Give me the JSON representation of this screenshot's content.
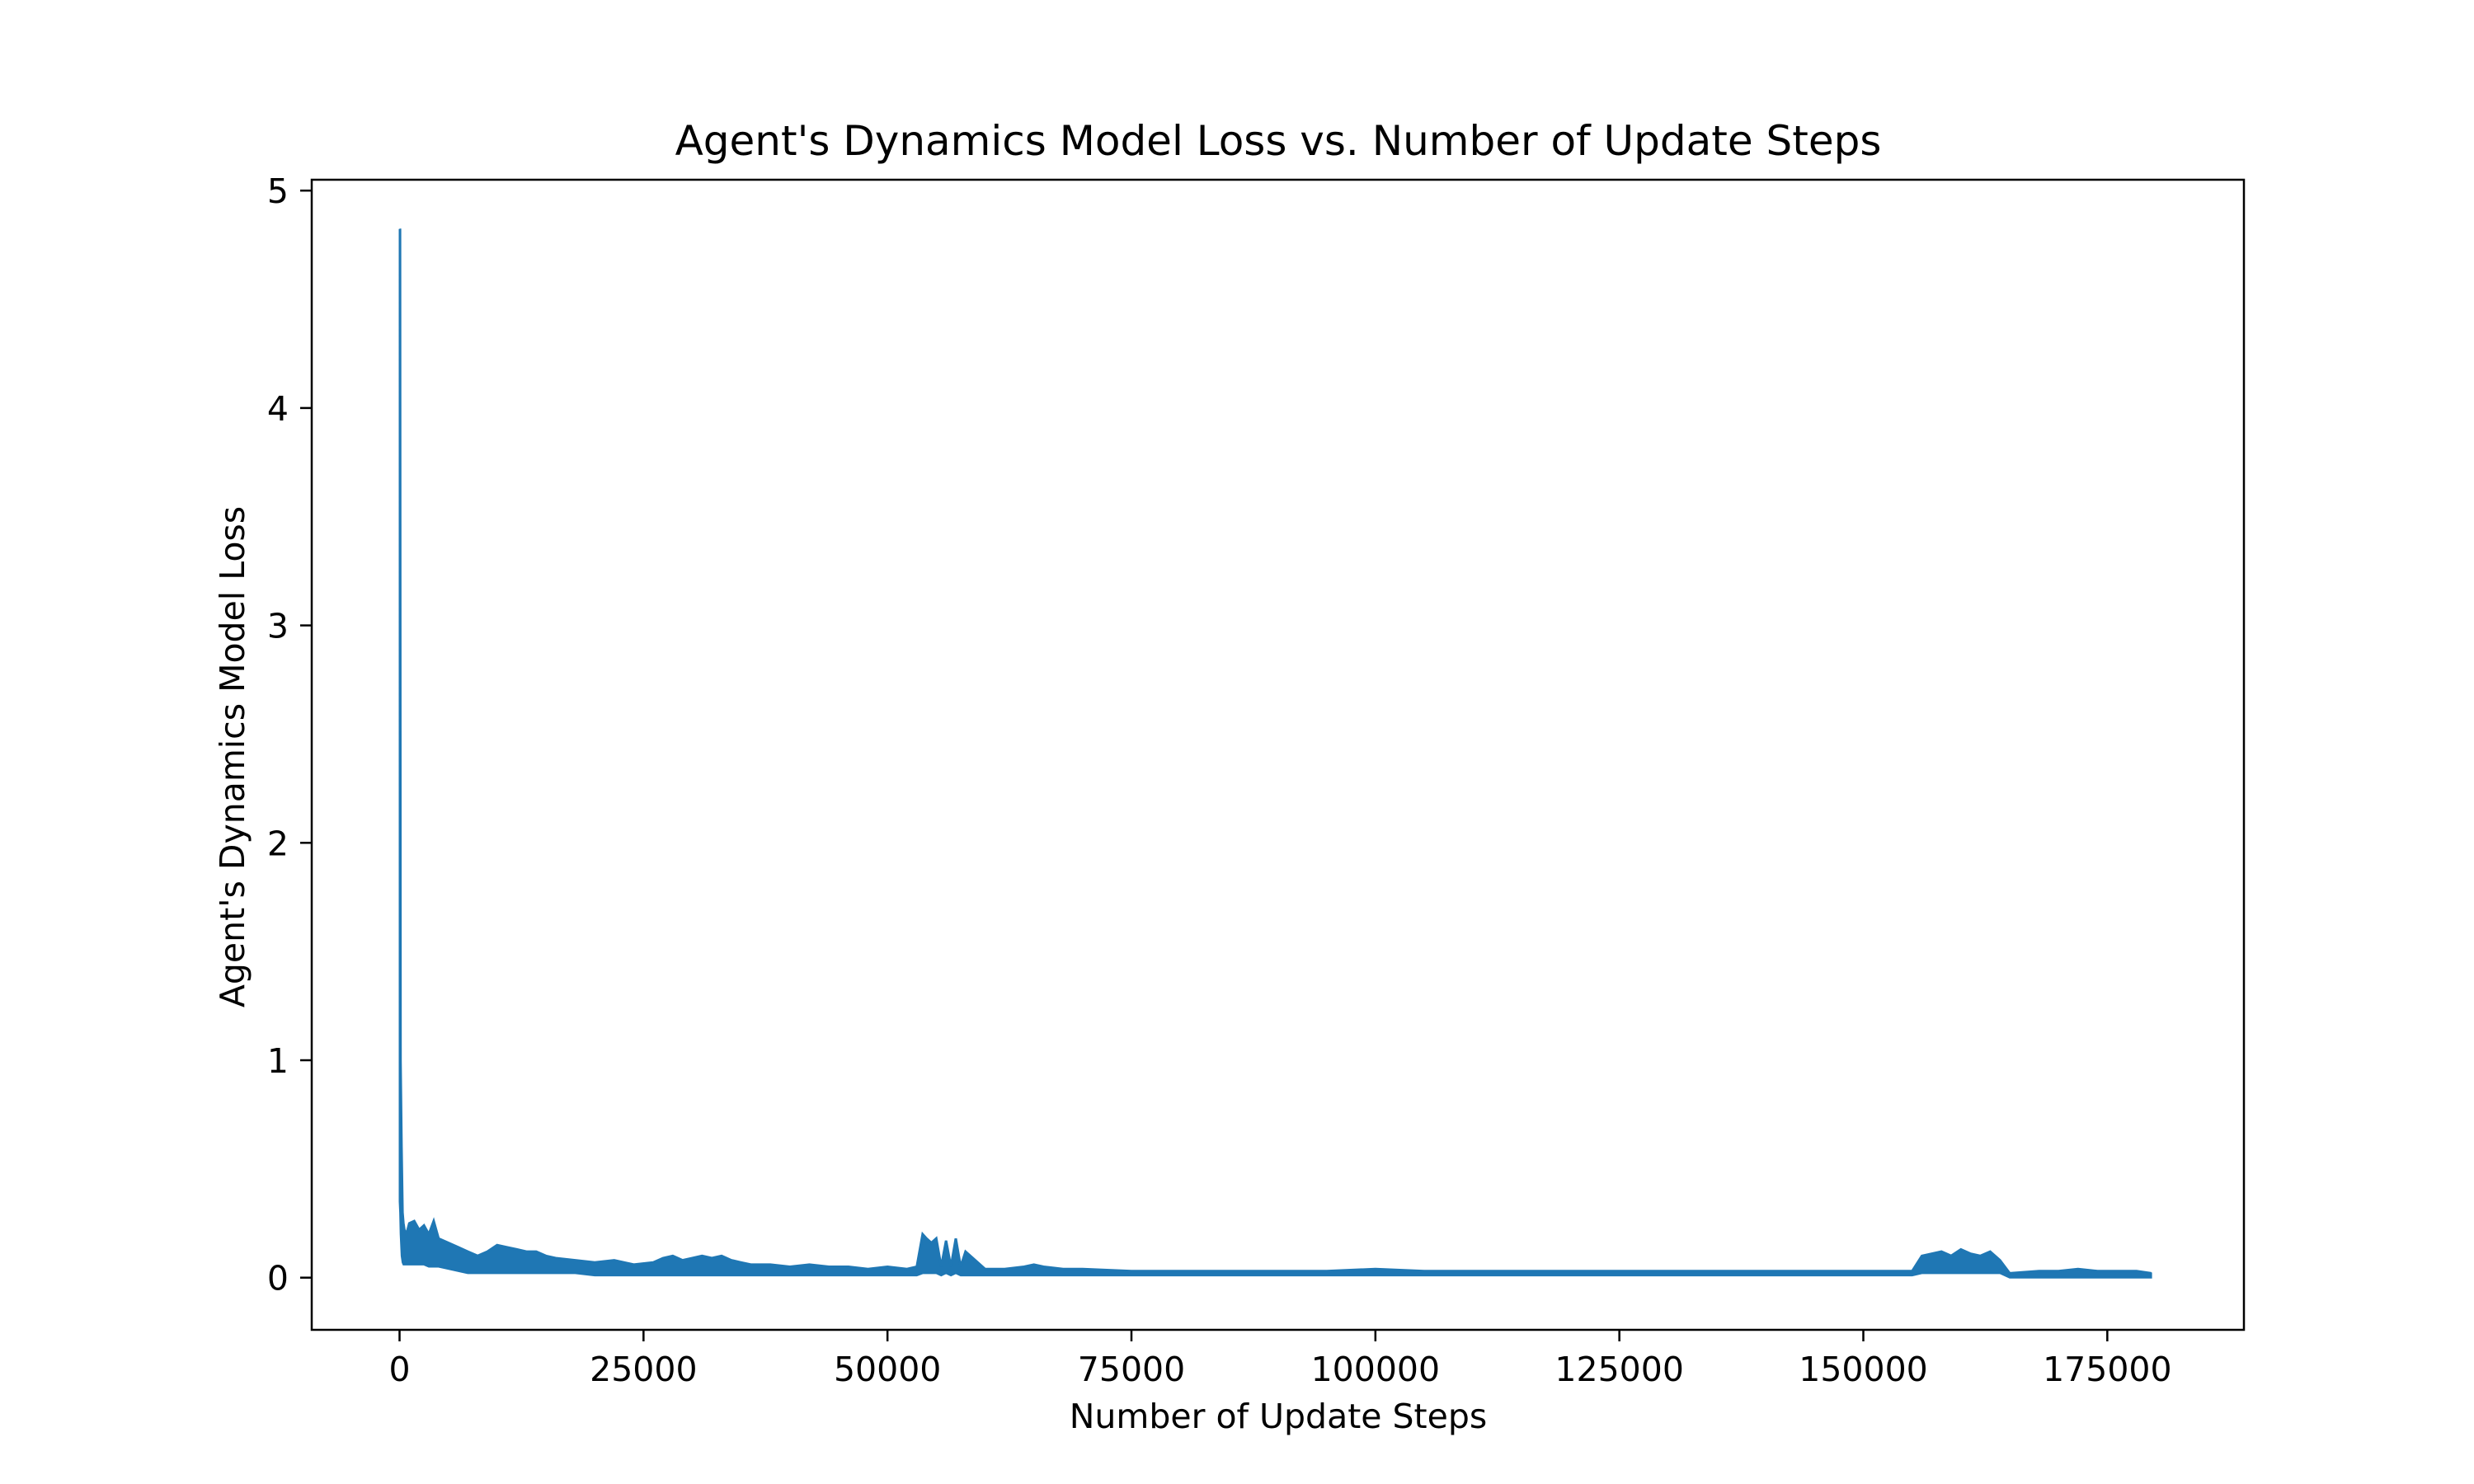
{
  "chart_data": {
    "type": "line",
    "title": "Agent's Dynamics Model Loss vs. Number of Update Steps",
    "xlabel": "Number of Update Steps",
    "ylabel": "Agent's Dynamics Model Loss",
    "xlim": [
      -9000,
      189000
    ],
    "ylim": [
      -0.24,
      5.05
    ],
    "xticks": [
      0,
      25000,
      50000,
      75000,
      100000,
      125000,
      150000,
      175000
    ],
    "yticks": [
      0,
      1,
      2,
      3,
      4,
      5
    ],
    "grid": false,
    "legend": "none",
    "series": [
      {
        "color": "#1f77b4",
        "x": [
          0,
          50,
          100,
          200,
          300,
          400,
          500,
          700,
          1000,
          1500,
          2000,
          2500,
          3000,
          3500,
          4000,
          5000,
          6000,
          7000,
          8000,
          9000,
          10000,
          11000,
          12000,
          13000,
          14000,
          15000,
          16000,
          18000,
          20000,
          22000,
          24000,
          26000,
          27000,
          28000,
          29000,
          30000,
          31000,
          32000,
          33000,
          34000,
          35000,
          36000,
          38000,
          40000,
          42000,
          44000,
          46000,
          48000,
          50000,
          52000,
          53000,
          53600,
          54000,
          54500,
          55000,
          55500,
          56000,
          56500,
          57000,
          57500,
          58000,
          60000,
          62000,
          64000,
          65000,
          66000,
          68000,
          70000,
          75000,
          80000,
          85000,
          90000,
          95000,
          100000,
          105000,
          110000,
          115000,
          120000,
          125000,
          130000,
          135000,
          140000,
          145000,
          150000,
          155000,
          156000,
          157000,
          158000,
          159000,
          160000,
          161000,
          162000,
          163000,
          164000,
          165000,
          168000,
          170000,
          172000,
          174000,
          176000,
          178000,
          179500
        ],
        "y_upper": [
          4.82,
          4.82,
          1.0,
          0.6,
          0.3,
          0.25,
          0.22,
          0.2,
          0.25,
          0.26,
          0.22,
          0.24,
          0.2,
          0.26,
          0.18,
          0.16,
          0.14,
          0.12,
          0.1,
          0.12,
          0.15,
          0.14,
          0.13,
          0.12,
          0.12,
          0.1,
          0.09,
          0.08,
          0.07,
          0.08,
          0.06,
          0.07,
          0.09,
          0.1,
          0.08,
          0.09,
          0.1,
          0.09,
          0.1,
          0.08,
          0.07,
          0.06,
          0.06,
          0.05,
          0.06,
          0.05,
          0.05,
          0.04,
          0.05,
          0.04,
          0.05,
          0.2,
          0.18,
          0.16,
          0.18,
          0.05,
          0.17,
          0.05,
          0.18,
          0.05,
          0.12,
          0.04,
          0.04,
          0.05,
          0.06,
          0.05,
          0.04,
          0.04,
          0.03,
          0.03,
          0.03,
          0.03,
          0.03,
          0.04,
          0.03,
          0.03,
          0.03,
          0.03,
          0.03,
          0.03,
          0.03,
          0.03,
          0.03,
          0.03,
          0.03,
          0.1,
          0.11,
          0.12,
          0.1,
          0.13,
          0.11,
          0.1,
          0.12,
          0.08,
          0.02,
          0.03,
          0.03,
          0.04,
          0.03,
          0.03,
          0.03,
          0.02
        ],
        "y_lower": [
          0.35,
          0.3,
          0.2,
          0.1,
          0.07,
          0.06,
          0.06,
          0.06,
          0.06,
          0.06,
          0.06,
          0.06,
          0.05,
          0.05,
          0.05,
          0.04,
          0.03,
          0.02,
          0.02,
          0.02,
          0.02,
          0.02,
          0.02,
          0.02,
          0.02,
          0.02,
          0.02,
          0.02,
          0.01,
          0.01,
          0.01,
          0.01,
          0.01,
          0.01,
          0.01,
          0.01,
          0.01,
          0.01,
          0.01,
          0.01,
          0.01,
          0.01,
          0.01,
          0.01,
          0.01,
          0.01,
          0.01,
          0.01,
          0.01,
          0.01,
          0.01,
          0.02,
          0.02,
          0.02,
          0.02,
          0.01,
          0.02,
          0.01,
          0.02,
          0.01,
          0.01,
          0.01,
          0.01,
          0.01,
          0.01,
          0.01,
          0.01,
          0.01,
          0.01,
          0.01,
          0.01,
          0.01,
          0.01,
          0.01,
          0.01,
          0.01,
          0.01,
          0.01,
          0.01,
          0.01,
          0.01,
          0.01,
          0.01,
          0.01,
          0.01,
          0.02,
          0.02,
          0.02,
          0.02,
          0.02,
          0.02,
          0.02,
          0.02,
          0.02,
          0.0,
          0.0,
          0.0,
          0.0,
          0.0,
          0.0,
          0.0,
          0.0
        ]
      }
    ]
  }
}
